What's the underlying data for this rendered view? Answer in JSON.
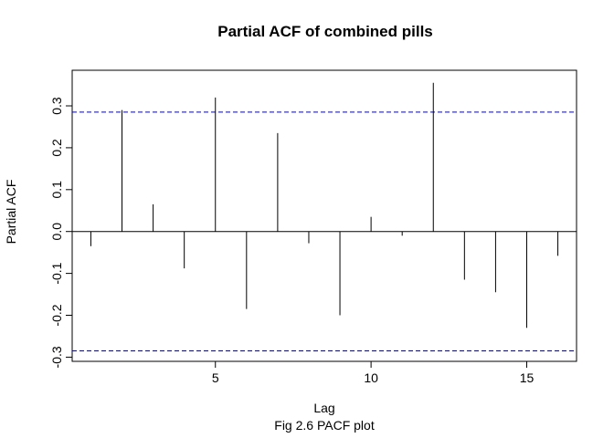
{
  "chart_data": {
    "type": "bar",
    "title": "Partial ACF of combined pills",
    "xlabel": "Lag",
    "ylabel": "Partial ACF",
    "caption": "Fig 2.6 PACF plot",
    "x": [
      1,
      2,
      3,
      4,
      5,
      6,
      7,
      8,
      9,
      10,
      11,
      12,
      13,
      14,
      15,
      16
    ],
    "values": [
      -0.035,
      0.29,
      0.065,
      -0.088,
      0.32,
      -0.185,
      0.235,
      -0.028,
      -0.2,
      0.035,
      -0.01,
      0.355,
      -0.115,
      -0.145,
      -0.23,
      -0.058
    ],
    "xlim": [
      0.4,
      16.6
    ],
    "ylim": [
      -0.31,
      0.385
    ],
    "xticks": [
      5,
      10,
      15
    ],
    "yticks": [
      -0.3,
      -0.2,
      -0.1,
      0.0,
      0.1,
      0.2,
      0.3
    ],
    "ytick_labels": [
      "-0.3",
      "-0.2",
      "-0.1",
      "0.0",
      "0.1",
      "0.2",
      "0.3"
    ],
    "confidence_bound": 0.285,
    "bound_color": "#0000cc",
    "grid": false,
    "legend": "none"
  }
}
